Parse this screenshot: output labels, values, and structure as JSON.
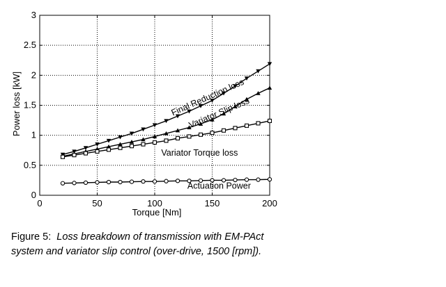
{
  "chart_data": {
    "type": "line",
    "xlabel": "Torque [Nm]",
    "ylabel": "Power loss [kW]",
    "xlim": [
      0,
      200
    ],
    "ylim": [
      0,
      3
    ],
    "x_ticks": [
      "0",
      "50",
      "100",
      "150",
      "200"
    ],
    "y_ticks": [
      "0",
      "0.5",
      "1",
      "1.5",
      "2",
      "2.5",
      "3"
    ],
    "grid": true,
    "series": [
      {
        "name": "Final Reduction loss",
        "marker": "triangle-down",
        "x": [
          20,
          30,
          40,
          50,
          60,
          70,
          80,
          90,
          100,
          110,
          120,
          130,
          140,
          150,
          160,
          170,
          180,
          190,
          200
        ],
        "y": [
          0.68,
          0.73,
          0.79,
          0.85,
          0.91,
          0.97,
          1.03,
          1.1,
          1.17,
          1.24,
          1.32,
          1.4,
          1.49,
          1.58,
          1.7,
          1.82,
          1.95,
          2.07,
          2.19
        ]
      },
      {
        "name": "Variator Slip loss",
        "marker": "triangle-up",
        "x": [
          20,
          30,
          40,
          50,
          60,
          70,
          80,
          90,
          100,
          110,
          120,
          130,
          140,
          150,
          160,
          170,
          180,
          190,
          200
        ],
        "y": [
          0.65,
          0.69,
          0.73,
          0.77,
          0.81,
          0.85,
          0.89,
          0.93,
          0.98,
          1.03,
          1.08,
          1.13,
          1.19,
          1.26,
          1.36,
          1.48,
          1.6,
          1.7,
          1.79
        ]
      },
      {
        "name": "Variator Torque loss",
        "marker": "square",
        "x": [
          20,
          30,
          40,
          50,
          60,
          70,
          80,
          90,
          100,
          110,
          120,
          130,
          140,
          150,
          160,
          170,
          180,
          190,
          200
        ],
        "y": [
          0.64,
          0.67,
          0.7,
          0.73,
          0.76,
          0.79,
          0.82,
          0.85,
          0.88,
          0.91,
          0.95,
          0.98,
          1.01,
          1.04,
          1.08,
          1.12,
          1.16,
          1.2,
          1.24
        ]
      },
      {
        "name": "Actuation Power",
        "marker": "circle",
        "x": [
          20,
          30,
          40,
          50,
          60,
          70,
          80,
          90,
          100,
          110,
          120,
          130,
          140,
          150,
          160,
          170,
          180,
          190,
          200
        ],
        "y": [
          0.2,
          0.205,
          0.21,
          0.215,
          0.22,
          0.22,
          0.225,
          0.23,
          0.23,
          0.235,
          0.24,
          0.24,
          0.245,
          0.25,
          0.25,
          0.255,
          0.26,
          0.26,
          0.265
        ]
      }
    ],
    "annotations": [
      {
        "text": "Final Reduction loss",
        "x": 147,
        "y": 1.59,
        "rotation": -24
      },
      {
        "text": "Variator Slip loss",
        "x": 157,
        "y": 1.33,
        "rotation": -23
      },
      {
        "text": "Variator Torque loss",
        "x": 139,
        "y": 0.66,
        "rotation": 0
      },
      {
        "text": "Actuation Power",
        "x": 156,
        "y": 0.11,
        "rotation": 0
      }
    ]
  },
  "caption": {
    "label": "Figure 5:",
    "text": "Loss breakdown of transmission with EM-PAct system and variator slip control (over-drive, 1500 [rpm])."
  }
}
